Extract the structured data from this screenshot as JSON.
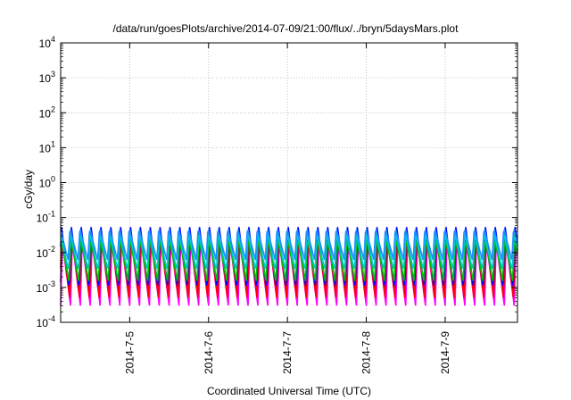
{
  "chart_data": {
    "type": "line",
    "title": "/data/run/goesPlots/archive/2014-07-09/21:00/flux/../bryn/5daysMars.plot",
    "xlabel": "Coordinated Universal Time (UTC)",
    "ylabel": "cGy/day",
    "yscale": "log",
    "ylim": [
      0.0001,
      10000
    ],
    "xlim": [
      "2014-07-04T03:00",
      "2014-07-09T22:00"
    ],
    "grid": true,
    "x_ticks": [
      "2014-7-5",
      "2014-7-6",
      "2014-7-7",
      "2014-7-8",
      "2014-7-9"
    ],
    "y_ticks": [
      {
        "base": "10",
        "exp": "-4"
      },
      {
        "base": "10",
        "exp": "-3"
      },
      {
        "base": "10",
        "exp": "-2"
      },
      {
        "base": "10",
        "exp": "-1"
      },
      {
        "base": "10",
        "exp": "0"
      },
      {
        "base": "10",
        "exp": "1"
      },
      {
        "base": "10",
        "exp": "2"
      },
      {
        "base": "10",
        "exp": "3"
      },
      {
        "base": "10",
        "exp": "4"
      }
    ],
    "cycle_hours": 3,
    "series": [
      {
        "color": "#ff00ff",
        "peak": 0.02,
        "trough": 0.0003
      },
      {
        "color": "#9400d3",
        "peak": 0.03,
        "trough": 0.0006
      },
      {
        "color": "#ff0000",
        "peak": 0.04,
        "trough": 0.0005
      },
      {
        "color": "#0000ff",
        "peak": 0.06,
        "trough": 0.0009
      },
      {
        "color": "#00c000",
        "peak": 0.025,
        "trough": 0.0015
      },
      {
        "color": "#00cccc",
        "peak": 0.035,
        "trough": 0.003
      },
      {
        "color": "#1e90ff",
        "peak": 0.05,
        "trough": 0.006
      }
    ]
  }
}
